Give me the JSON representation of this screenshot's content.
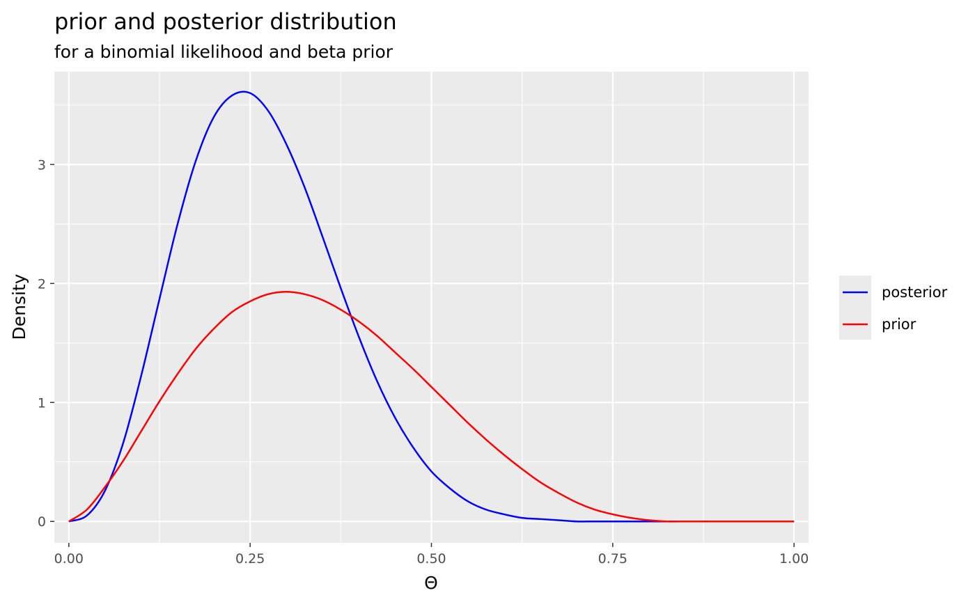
{
  "chart_data": {
    "type": "line",
    "title": "prior and posterior distribution",
    "subtitle": "for a binomial likelihood and beta prior",
    "xlabel": "Θ",
    "ylabel": "Density",
    "xlim": [
      -0.02,
      1.02
    ],
    "ylim": [
      -0.18,
      3.78
    ],
    "x_ticks": [
      0.0,
      0.25,
      0.5,
      0.75,
      1.0
    ],
    "x_tick_labels": [
      "0.00",
      "0.25",
      "0.50",
      "0.75",
      "1.00"
    ],
    "y_ticks": [
      0,
      1,
      2,
      3
    ],
    "y_tick_labels": [
      "0",
      "1",
      "2",
      "3"
    ],
    "grid": true,
    "legend_position": "right",
    "series": [
      {
        "name": "posterior",
        "color": "#0000FF",
        "x": [
          0.0,
          0.025,
          0.05,
          0.075,
          0.1,
          0.125,
          0.15,
          0.175,
          0.2,
          0.225,
          0.25,
          0.275,
          0.3,
          0.325,
          0.35,
          0.375,
          0.4,
          0.425,
          0.45,
          0.475,
          0.5,
          0.525,
          0.55,
          0.575,
          0.6,
          0.625,
          0.65,
          0.675,
          0.7,
          0.725,
          0.75,
          0.775,
          0.8,
          0.825,
          0.85,
          0.875,
          0.9,
          0.925,
          0.95,
          0.975,
          1.0
        ],
        "values": [
          0.0,
          0.05,
          0.26,
          0.66,
          1.23,
          1.87,
          2.5,
          3.03,
          3.4,
          3.58,
          3.6,
          3.45,
          3.17,
          2.81,
          2.39,
          1.96,
          1.55,
          1.18,
          0.87,
          0.62,
          0.42,
          0.28,
          0.17,
          0.1,
          0.06,
          0.03,
          0.02,
          0.01,
          0.0,
          0.0,
          0.0,
          0.0,
          0.0,
          0.0,
          0.0,
          0.0,
          0.0,
          0.0,
          0.0,
          0.0,
          0.0
        ]
      },
      {
        "name": "prior",
        "color": "#FF0000",
        "x": [
          0.0,
          0.025,
          0.05,
          0.075,
          0.1,
          0.125,
          0.15,
          0.175,
          0.2,
          0.225,
          0.25,
          0.275,
          0.3,
          0.325,
          0.35,
          0.375,
          0.4,
          0.425,
          0.45,
          0.475,
          0.5,
          0.525,
          0.55,
          0.575,
          0.6,
          0.625,
          0.65,
          0.675,
          0.7,
          0.725,
          0.75,
          0.775,
          0.8,
          0.825,
          0.85,
          0.875,
          0.9,
          0.925,
          0.95,
          0.975,
          1.0
        ],
        "values": [
          0.0,
          0.1,
          0.29,
          0.51,
          0.76,
          1.01,
          1.24,
          1.45,
          1.62,
          1.76,
          1.85,
          1.91,
          1.93,
          1.91,
          1.86,
          1.78,
          1.68,
          1.56,
          1.42,
          1.28,
          1.13,
          0.98,
          0.83,
          0.69,
          0.56,
          0.44,
          0.33,
          0.24,
          0.16,
          0.1,
          0.06,
          0.03,
          0.01,
          0.0,
          0.0,
          0.0,
          0.0,
          0.0,
          0.0,
          0.0,
          0.0
        ]
      }
    ],
    "colors": {
      "panel_background": "#EBEBEB",
      "grid": "#FFFFFF",
      "legend_background": "#EBEBEB"
    }
  }
}
